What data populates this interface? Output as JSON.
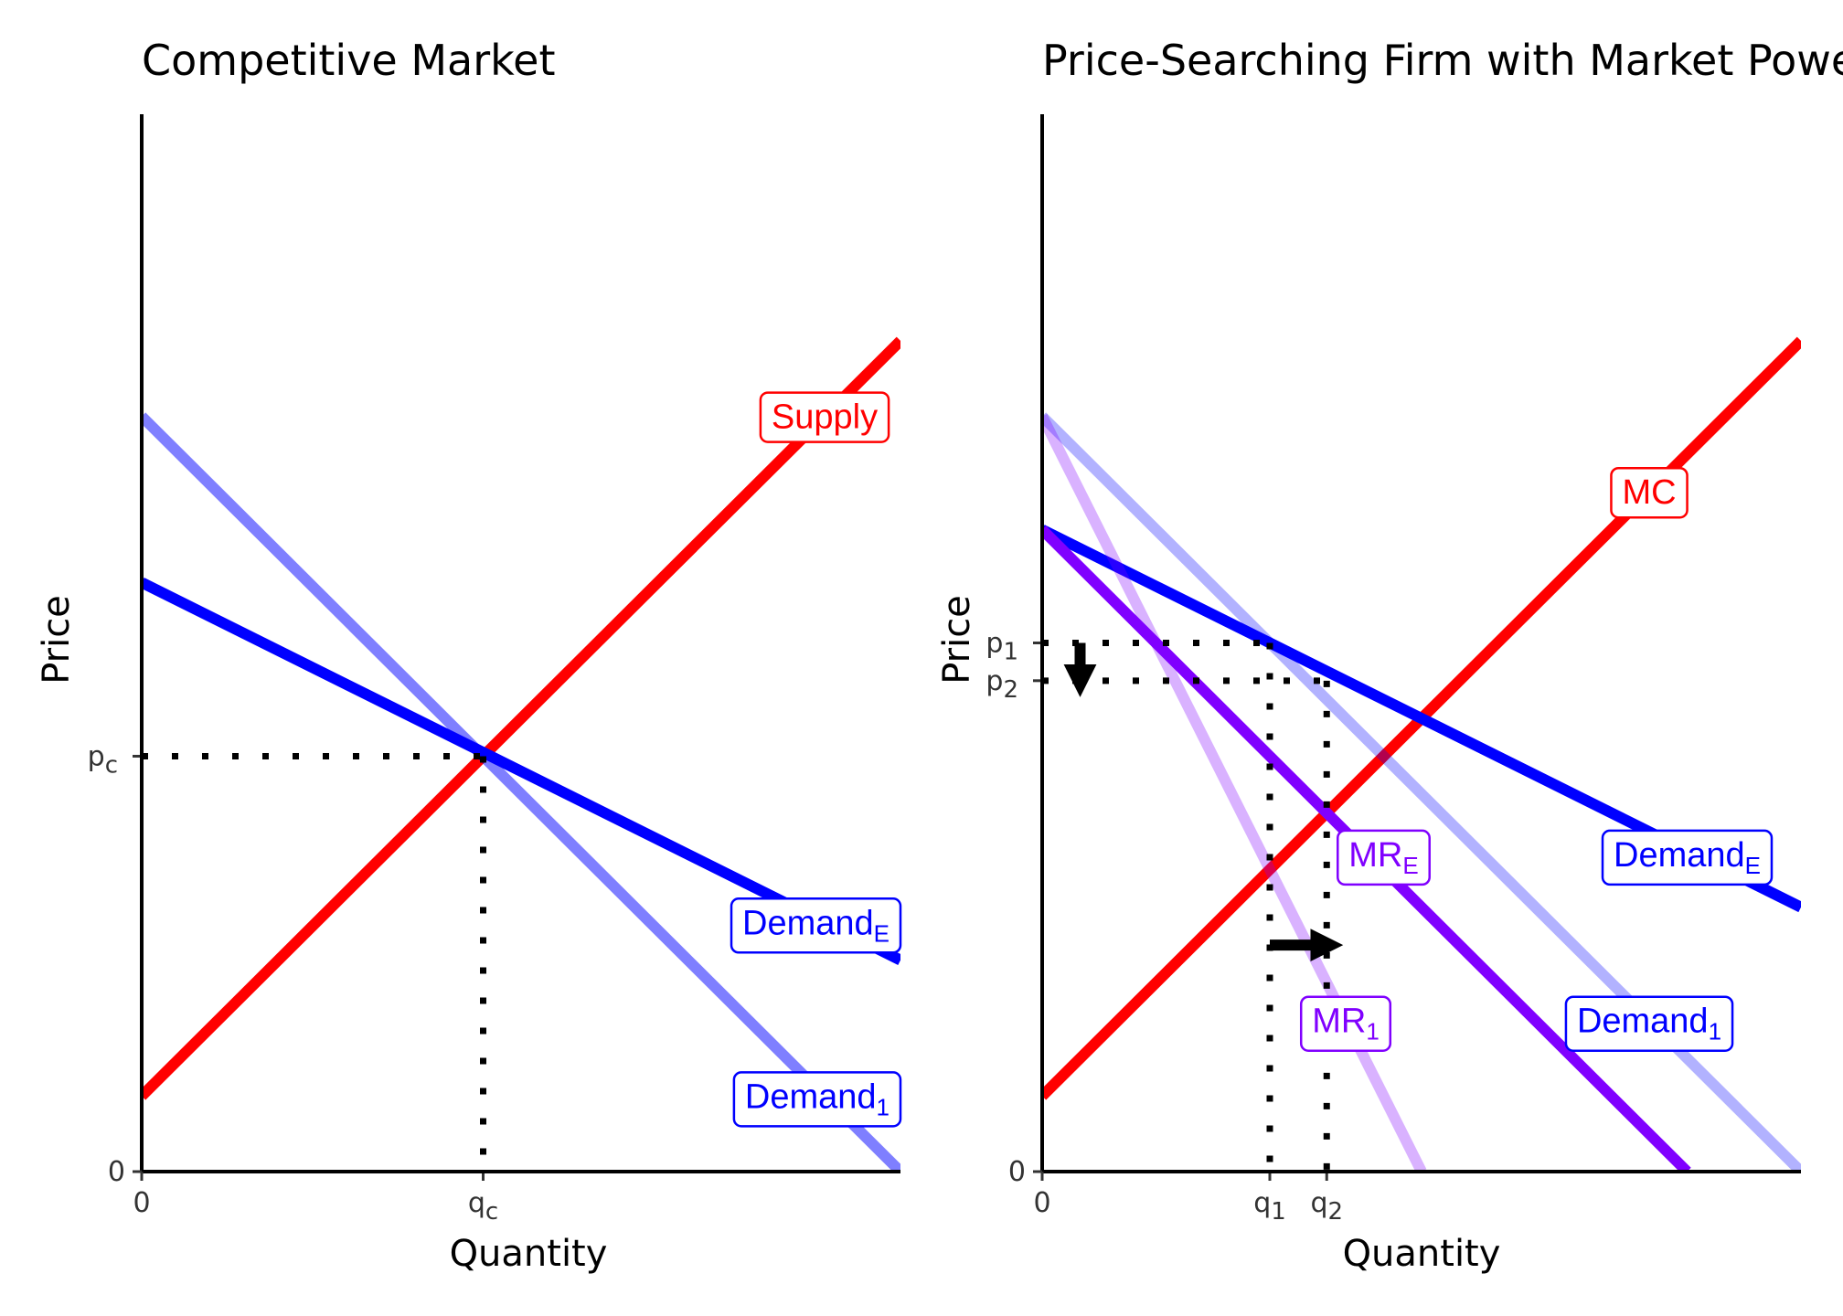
{
  "chart_data": [
    {
      "type": "line",
      "title": "Competitive Market",
      "xlabel": "Quantity",
      "ylabel": "Price",
      "xlim": [
        0,
        10
      ],
      "ylim": [
        0,
        14
      ],
      "x_ticks": [
        "0",
        "q_c"
      ],
      "y_ticks": [
        "0",
        "p_c"
      ],
      "series": [
        {
          "name": "Supply",
          "color": "#ff0000",
          "opacity": 1,
          "x": [
            0,
            10
          ],
          "y": [
            1,
            11
          ]
        },
        {
          "name": "Demand_E",
          "color": "#0000ff",
          "opacity": 1,
          "x": [
            0,
            10
          ],
          "y": [
            7.8,
            2.8
          ]
        },
        {
          "name": "Demand_1",
          "color": "#0000ff",
          "opacity": 0.5,
          "x": [
            0,
            10
          ],
          "y": [
            10,
            0
          ]
        }
      ],
      "labels": [
        {
          "text": "Supply",
          "sub": "",
          "color": "#ff0000",
          "x": 9,
          "y": 10
        },
        {
          "text": "Demand",
          "sub": "E",
          "color": "#0000ff",
          "x": 9,
          "y": 3.3
        },
        {
          "text": "Demand",
          "sub": "1",
          "color": "#0000ff",
          "x": 9,
          "y": 1
        }
      ],
      "equilibrium": {
        "q": 4.5,
        "p": 5.5,
        "q_label": "q",
        "q_sub": "c",
        "p_label": "p",
        "p_sub": "c"
      }
    },
    {
      "type": "line",
      "title": "Price-Searching Firm with Market Power",
      "xlabel": "Quantity",
      "ylabel": "Price",
      "xlim": [
        0,
        10
      ],
      "ylim": [
        0,
        14
      ],
      "x_ticks": [
        "0",
        "q_1",
        "q_2"
      ],
      "y_ticks": [
        "0",
        "p_1",
        "p_2"
      ],
      "series": [
        {
          "name": "MC",
          "color": "#ff0000",
          "opacity": 1,
          "x": [
            0,
            10
          ],
          "y": [
            1,
            11
          ]
        },
        {
          "name": "Demand_E",
          "color": "#0000ff",
          "opacity": 1,
          "x": [
            0,
            10
          ],
          "y": [
            8.5,
            3.5
          ]
        },
        {
          "name": "Demand_1",
          "color": "#0000ff",
          "opacity": 0.3,
          "x": [
            0,
            10
          ],
          "y": [
            10,
            0
          ]
        },
        {
          "name": "MR_E",
          "color": "#8000ff",
          "opacity": 1,
          "x": [
            0,
            8.5
          ],
          "y": [
            8.5,
            0
          ]
        },
        {
          "name": "MR_1",
          "color": "#8000ff",
          "opacity": 0.3,
          "x": [
            0,
            5
          ],
          "y": [
            10,
            0
          ]
        }
      ],
      "labels": [
        {
          "text": "MC",
          "sub": "",
          "color": "#ff0000",
          "x": 8,
          "y": 9
        },
        {
          "text": "Demand",
          "sub": "E",
          "color": "#0000ff",
          "x": 8.5,
          "y": 4.2
        },
        {
          "text": "Demand",
          "sub": "1",
          "color": "#0000ff",
          "x": 8,
          "y": 2
        },
        {
          "text": "MR",
          "sub": "E",
          "color": "#8000ff",
          "x": 4.5,
          "y": 4.2
        },
        {
          "text": "MR",
          "sub": "1",
          "color": "#8000ff",
          "x": 4,
          "y": 2
        }
      ],
      "points": [
        {
          "q": 3,
          "p": 7,
          "q_label": "q",
          "q_sub": "1",
          "p_label": "p",
          "p_sub": "1"
        },
        {
          "q": 3.75,
          "p": 6.5,
          "q_label": "q",
          "q_sub": "2",
          "p_label": "p",
          "p_sub": "2"
        }
      ],
      "arrows": [
        {
          "from": [
            0.5,
            7
          ],
          "to": [
            0.5,
            6.5
          ]
        },
        {
          "from": [
            3,
            3.0
          ],
          "to": [
            3.75,
            3.0
          ]
        }
      ]
    }
  ]
}
